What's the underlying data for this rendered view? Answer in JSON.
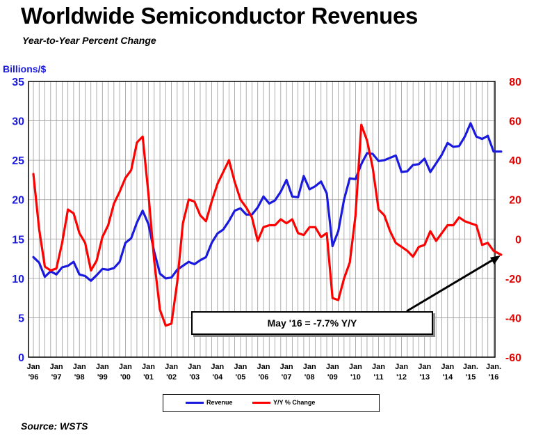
{
  "title": "Worldwide Semiconductor Revenues",
  "subtitle": "Year-to-Year Percent Change",
  "left_axis_unit": "Billions/$",
  "source": "Source: WSTS",
  "annotation": "May '16 = -7.7% Y/Y",
  "legend": {
    "revenue": "Revenue",
    "yoy": "Y/Y % Change"
  },
  "colors": {
    "revenue": "#1a1adf",
    "yoy": "#ff0000",
    "grid": "#999999"
  },
  "chart_data": {
    "type": "line",
    "grid": true,
    "legend_position": "bottom",
    "x_ticks": [
      {
        "top": "Jan",
        "bottom": "'96"
      },
      {
        "top": "Jan",
        "bottom": "'97"
      },
      {
        "top": "Jan",
        "bottom": "'98"
      },
      {
        "top": "Jan",
        "bottom": "'99"
      },
      {
        "top": "Jan",
        "bottom": "'00"
      },
      {
        "top": "Jan",
        "bottom": "'01"
      },
      {
        "top": "Jan",
        "bottom": "'02"
      },
      {
        "top": "Jan",
        "bottom": "'03"
      },
      {
        "top": "Jan",
        "bottom": "'04"
      },
      {
        "top": "Jan",
        "bottom": "'05"
      },
      {
        "top": "Jan",
        "bottom": "'06"
      },
      {
        "top": "Jan",
        "bottom": "'07"
      },
      {
        "top": "Jan",
        "bottom": "'08"
      },
      {
        "top": "Jan",
        "bottom": "'09"
      },
      {
        "top": "Jan",
        "bottom": "'10"
      },
      {
        "top": "Jan",
        "bottom": "'11"
      },
      {
        "top": "Jan",
        "bottom": "'12"
      },
      {
        "top": "Jan",
        "bottom": "'13"
      },
      {
        "top": "Jan",
        "bottom": "'14"
      },
      {
        "top": "Jan.",
        "bottom": "'15"
      },
      {
        "top": "Jan.",
        "bottom": "'16"
      }
    ],
    "y_left": {
      "label": "Billions/$",
      "min": 0,
      "max": 35,
      "ticks": [
        0,
        5,
        10,
        15,
        20,
        25,
        30,
        35
      ]
    },
    "y_right": {
      "min": -60,
      "max": 80,
      "ticks": [
        -60,
        -40,
        -20,
        0,
        20,
        40,
        60,
        80
      ]
    },
    "series": [
      {
        "name": "Revenue",
        "axis": "left",
        "x": [
          1996.0,
          1996.25,
          1996.5,
          1996.75,
          1997.0,
          1997.25,
          1997.5,
          1997.75,
          1998.0,
          1998.25,
          1998.5,
          1998.75,
          1999.0,
          1999.25,
          1999.5,
          1999.75,
          2000.0,
          2000.25,
          2000.5,
          2000.75,
          2001.0,
          2001.25,
          2001.5,
          2001.75,
          2002.0,
          2002.25,
          2002.5,
          2002.75,
          2003.0,
          2003.25,
          2003.5,
          2003.75,
          2004.0,
          2004.25,
          2004.5,
          2004.75,
          2005.0,
          2005.25,
          2005.5,
          2005.75,
          2006.0,
          2006.25,
          2006.5,
          2006.75,
          2007.0,
          2007.25,
          2007.5,
          2007.75,
          2008.0,
          2008.25,
          2008.5,
          2008.75,
          2009.0,
          2009.25,
          2009.5,
          2009.75,
          2010.0,
          2010.25,
          2010.5,
          2010.75,
          2011.0,
          2011.25,
          2011.5,
          2011.75,
          2012.0,
          2012.25,
          2012.5,
          2012.75,
          2013.0,
          2013.25,
          2013.5,
          2013.75,
          2014.0,
          2014.25,
          2014.5,
          2014.75,
          2015.0,
          2015.25,
          2015.5,
          2015.75,
          2016.0,
          2016.33
        ],
        "values": [
          12.7,
          12.0,
          10.2,
          10.9,
          10.5,
          11.4,
          11.6,
          12.1,
          10.5,
          10.3,
          9.7,
          10.4,
          11.2,
          11.1,
          11.3,
          12.1,
          14.5,
          15.1,
          17.1,
          18.6,
          16.9,
          13.4,
          10.6,
          10.0,
          10.1,
          11.1,
          11.6,
          12.1,
          11.8,
          12.3,
          12.7,
          14.5,
          15.7,
          16.2,
          17.3,
          18.6,
          18.9,
          18.1,
          18.1,
          19.0,
          20.4,
          19.5,
          19.9,
          21.0,
          22.5,
          20.4,
          20.3,
          23.0,
          21.3,
          21.7,
          22.3,
          20.8,
          14.1,
          16.0,
          20.0,
          22.7,
          22.6,
          24.5,
          25.9,
          25.8,
          24.9,
          25.0,
          25.3,
          25.6,
          23.5,
          23.6,
          24.4,
          24.5,
          25.2,
          23.5,
          24.6,
          25.7,
          27.2,
          26.7,
          26.8,
          28.0,
          29.7,
          28.0,
          27.7,
          28.1,
          26.1,
          26.1
        ]
      },
      {
        "name": "Y/Y % Change",
        "axis": "right",
        "x": [
          1996.0,
          1996.25,
          1996.5,
          1996.75,
          1997.0,
          1997.25,
          1997.5,
          1997.75,
          1998.0,
          1998.25,
          1998.5,
          1998.75,
          1999.0,
          1999.25,
          1999.5,
          1999.75,
          2000.0,
          2000.25,
          2000.5,
          2000.75,
          2001.0,
          2001.25,
          2001.5,
          2001.75,
          2002.0,
          2002.25,
          2002.5,
          2002.75,
          2003.0,
          2003.25,
          2003.5,
          2003.75,
          2004.0,
          2004.25,
          2004.5,
          2004.75,
          2005.0,
          2005.25,
          2005.5,
          2005.75,
          2006.0,
          2006.25,
          2006.5,
          2006.75,
          2007.0,
          2007.25,
          2007.5,
          2007.75,
          2008.0,
          2008.25,
          2008.5,
          2008.75,
          2009.0,
          2009.25,
          2009.5,
          2009.75,
          2010.0,
          2010.25,
          2010.5,
          2010.75,
          2011.0,
          2011.25,
          2011.5,
          2011.75,
          2012.0,
          2012.25,
          2012.5,
          2012.75,
          2013.0,
          2013.25,
          2013.5,
          2013.75,
          2014.0,
          2014.25,
          2014.5,
          2014.75,
          2015.0,
          2015.25,
          2015.5,
          2015.75,
          2016.0,
          2016.33
        ],
        "values": [
          33,
          5,
          -14,
          -16,
          -15,
          -2,
          15,
          13,
          3,
          -2,
          -16,
          -11,
          1,
          7,
          18,
          24,
          31,
          35,
          49,
          52,
          23,
          -11,
          -36,
          -44,
          -43,
          -22,
          8,
          20,
          19,
          12,
          9,
          19,
          28,
          34,
          40,
          29,
          20,
          16,
          11,
          -1,
          6,
          7,
          7,
          10,
          8,
          10,
          3,
          2,
          6,
          6,
          1,
          3,
          -30,
          -31,
          -20,
          -12,
          12,
          58,
          50,
          36,
          15,
          12,
          4,
          -2,
          -4,
          -6,
          -9,
          -4,
          -3,
          4,
          -1,
          3,
          7,
          7,
          11,
          9,
          8,
          7,
          -3,
          -2,
          -6,
          -8
        ]
      }
    ]
  }
}
